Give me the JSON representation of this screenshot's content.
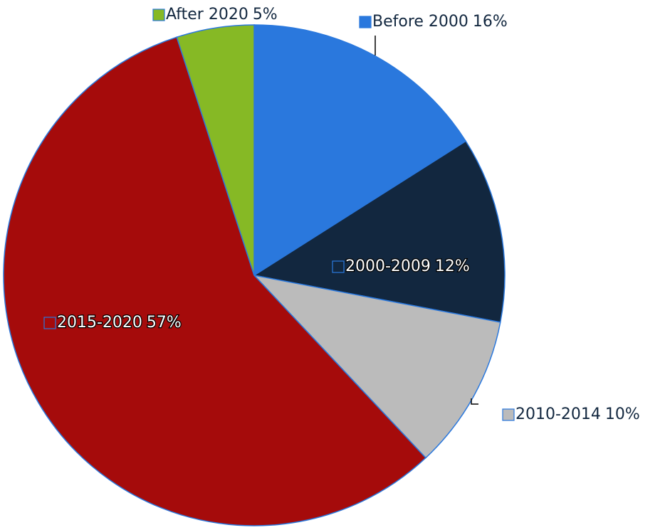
{
  "chart_data": {
    "type": "pie",
    "categories": [
      "Before 2000",
      "2000-2009",
      "2010-2014",
      "2015-2020",
      "After 2020"
    ],
    "values": [
      16,
      12,
      10,
      57,
      5
    ],
    "value_labels": [
      "16%",
      "12%",
      "10%",
      "57%",
      "5%"
    ],
    "colors": [
      "#2a78dd",
      "#12273f",
      "#bbbbbb",
      "#a50b0b",
      "#86b925"
    ]
  }
}
